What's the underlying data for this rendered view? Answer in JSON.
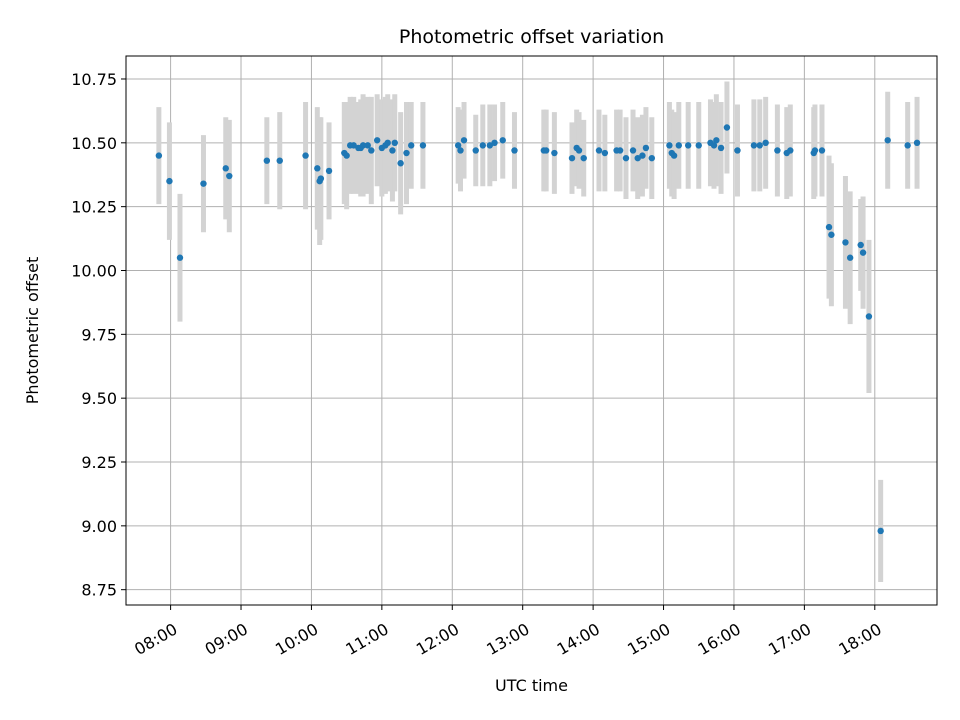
{
  "chart_data": {
    "type": "scatter",
    "title": "Photometric offset variation",
    "xlabel": "UTC time",
    "ylabel": "Photometric offset",
    "x_tick_labels": [
      "08:00",
      "09:00",
      "10:00",
      "11:00",
      "12:00",
      "13:00",
      "14:00",
      "15:00",
      "16:00",
      "17:00",
      "18:00"
    ],
    "y_tick_labels": [
      "8.75",
      "9.00",
      "9.25",
      "9.50",
      "9.75",
      "10.00",
      "10.25",
      "10.50",
      "10.75"
    ],
    "xlim": [
      "07:22",
      "18:53"
    ],
    "ylim": [
      8.69,
      10.84
    ],
    "grid": true,
    "colors": {
      "point": "#1f77b4",
      "errorbar": "#d3d3d3",
      "grid": "#b0b0b0"
    },
    "series": [
      {
        "x": [
          "07:50",
          "07:59",
          "08:08",
          "08:28",
          "08:47",
          "08:50",
          "09:22",
          "09:33",
          "09:55",
          "10:05",
          "10:07",
          "10:08",
          "10:15",
          "10:28",
          "10:30",
          "10:33",
          "10:36",
          "10:40",
          "10:42",
          "10:44",
          "10:48",
          "10:51",
          "10:56",
          "11:00",
          "11:03",
          "11:05",
          "11:09",
          "11:11",
          "11:16",
          "11:21",
          "11:25",
          "11:35",
          "12:05",
          "12:07",
          "12:10",
          "12:20",
          "12:26",
          "12:32",
          "12:36",
          "12:43",
          "12:53",
          "13:18",
          "13:20",
          "13:27",
          "13:42",
          "13:46",
          "13:48",
          "13:52",
          "14:05",
          "14:10",
          "14:20",
          "14:23",
          "14:28",
          "14:34",
          "14:38",
          "14:42",
          "14:45",
          "14:50",
          "15:05",
          "15:07",
          "15:09",
          "15:13",
          "15:21",
          "15:30",
          "15:40",
          "15:43",
          "15:45",
          "15:49",
          "15:54",
          "16:03",
          "16:17",
          "16:22",
          "16:27",
          "16:37",
          "16:45",
          "16:48",
          "17:08",
          "17:09",
          "17:15",
          "17:21",
          "17:23",
          "17:35",
          "17:39",
          "17:48",
          "17:50",
          "17:55",
          "18:05",
          "18:11",
          "18:28",
          "18:36"
        ],
        "y": [
          10.45,
          10.35,
          10.05,
          10.34,
          10.4,
          10.37,
          10.43,
          10.43,
          10.45,
          10.4,
          10.35,
          10.36,
          10.39,
          10.46,
          10.45,
          10.49,
          10.49,
          10.48,
          10.48,
          10.49,
          10.49,
          10.47,
          10.51,
          10.48,
          10.49,
          10.5,
          10.47,
          10.5,
          10.42,
          10.46,
          10.49,
          10.49,
          10.49,
          10.47,
          10.51,
          10.47,
          10.49,
          10.49,
          10.5,
          10.51,
          10.47,
          10.47,
          10.47,
          10.46,
          10.44,
          10.48,
          10.47,
          10.44,
          10.47,
          10.46,
          10.47,
          10.47,
          10.44,
          10.47,
          10.44,
          10.45,
          10.48,
          10.44,
          10.49,
          10.46,
          10.45,
          10.49,
          10.49,
          10.49,
          10.5,
          10.49,
          10.51,
          10.48,
          10.56,
          10.47,
          10.49,
          10.49,
          10.5,
          10.47,
          10.46,
          10.47,
          10.46,
          10.47,
          10.47,
          10.17,
          10.14,
          10.11,
          10.05,
          10.1,
          10.07,
          9.82,
          8.98,
          10.51,
          10.49,
          10.5
        ],
        "err": [
          0.19,
          0.23,
          0.25,
          0.19,
          0.2,
          0.22,
          0.17,
          0.19,
          0.21,
          0.24,
          0.25,
          0.24,
          0.19,
          0.2,
          0.21,
          0.19,
          0.19,
          0.18,
          0.19,
          0.2,
          0.19,
          0.21,
          0.18,
          0.19,
          0.19,
          0.19,
          0.2,
          0.19,
          0.2,
          0.2,
          0.17,
          0.17,
          0.15,
          0.16,
          0.15,
          0.14,
          0.16,
          0.16,
          0.15,
          0.15,
          0.15,
          0.16,
          0.16,
          0.16,
          0.14,
          0.15,
          0.15,
          0.15,
          0.16,
          0.15,
          0.16,
          0.16,
          0.16,
          0.16,
          0.16,
          0.16,
          0.16,
          0.16,
          0.17,
          0.17,
          0.17,
          0.17,
          0.17,
          0.17,
          0.17,
          0.17,
          0.18,
          0.18,
          0.18,
          0.18,
          0.18,
          0.18,
          0.18,
          0.18,
          0.18,
          0.18,
          0.18,
          0.18,
          0.18,
          0.28,
          0.28,
          0.26,
          0.26,
          0.18,
          0.22,
          0.3,
          0.2,
          0.19,
          0.17,
          0.18
        ]
      }
    ]
  }
}
